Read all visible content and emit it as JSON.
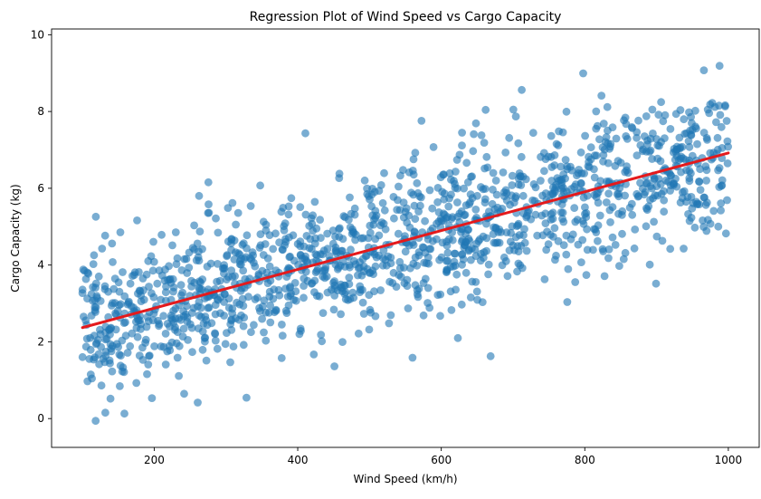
{
  "chart_data": {
    "type": "scatter",
    "title": "Regression Plot of Wind Speed vs Cargo Capacity",
    "xlabel": "Wind Speed (km/h)",
    "ylabel": "Cargo Capacity (kg)",
    "xlim": [
      57,
      1043
    ],
    "ylim": [
      -0.75,
      10.15
    ],
    "xticks": [
      200,
      400,
      600,
      800,
      1000
    ],
    "yticks": [
      0,
      2,
      4,
      6,
      8,
      10
    ],
    "grid": false,
    "legend": "none",
    "colors": {
      "points": "#1f77b4",
      "regression_line": "#e41a1c"
    },
    "points_description": {
      "x_range": [
        100,
        1000
      ],
      "y_min": -0.25,
      "y_max": 9.6
    },
    "regression_line": {
      "x": [
        100,
        1000
      ],
      "y": [
        2.37,
        6.92
      ]
    }
  }
}
